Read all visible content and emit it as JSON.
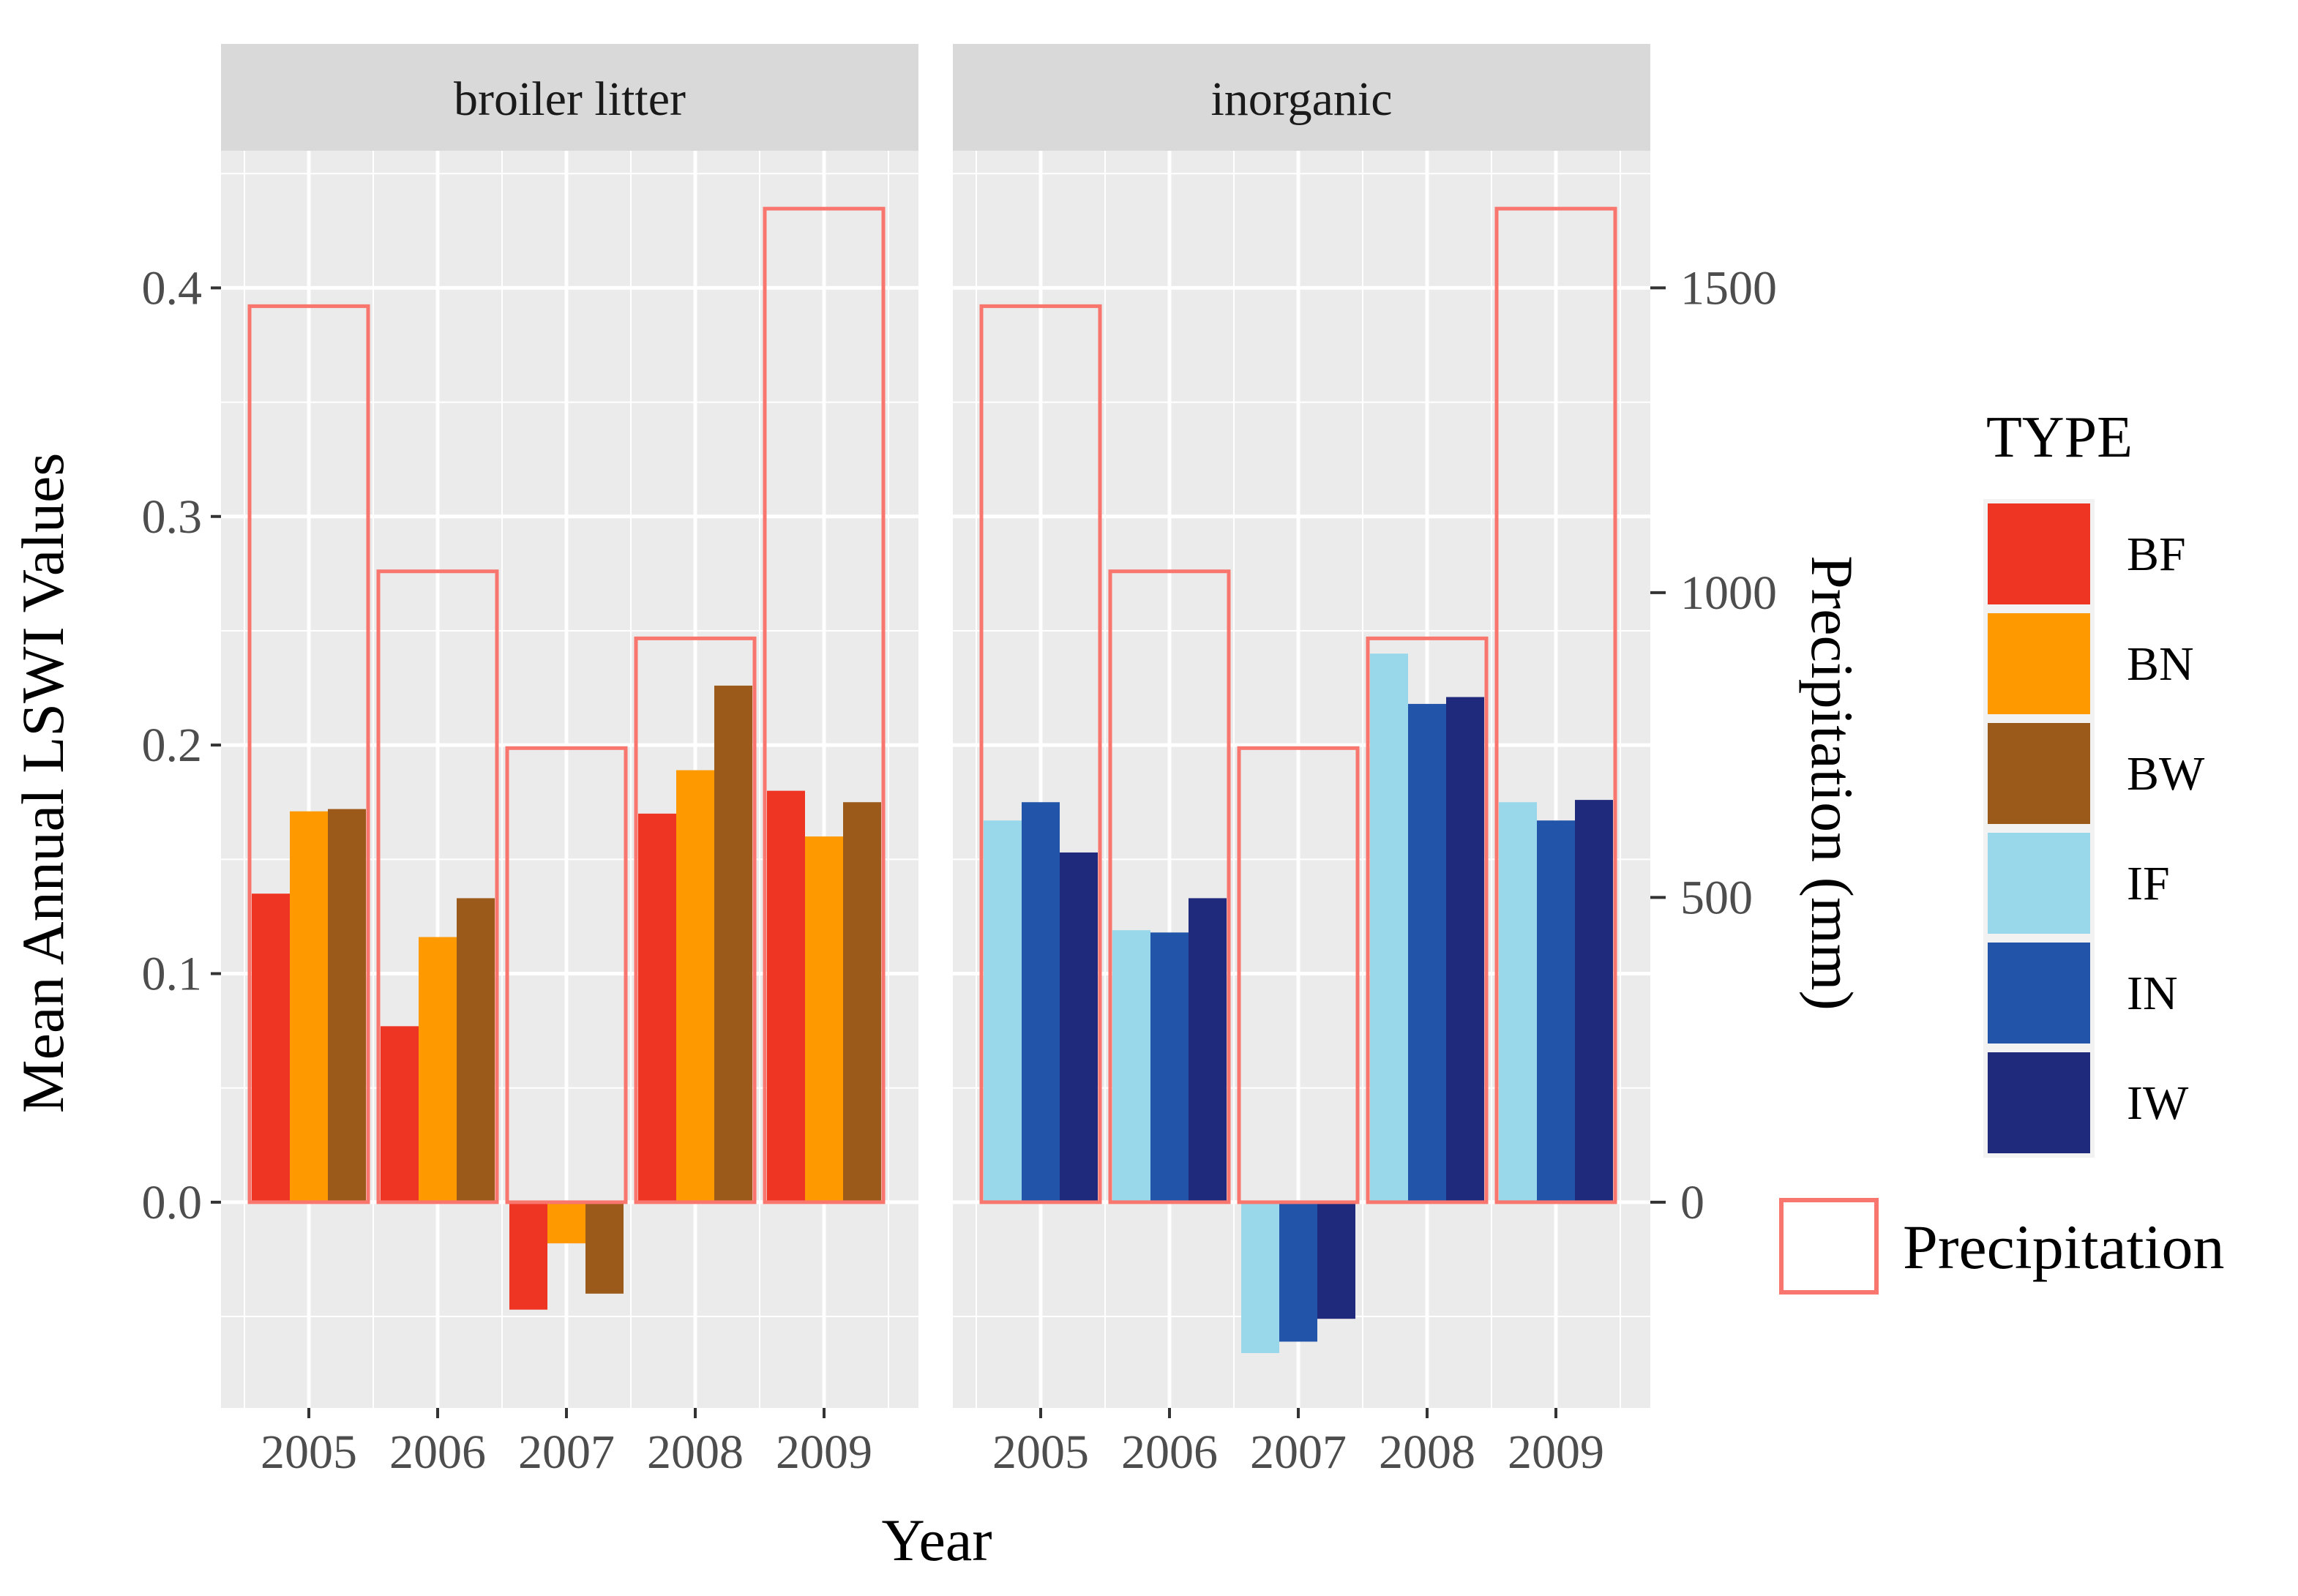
{
  "chart_data": {
    "type": "bar",
    "ylabel": "Mean Annual LSWI Values",
    "y2label": "Precipitation (mm)",
    "xlabel": "Year",
    "ylim": [
      -0.09,
      0.46
    ],
    "y_ticks": [
      0.0,
      0.1,
      0.2,
      0.3,
      0.4
    ],
    "y_tick_labels": [
      "0.0",
      "0.1",
      "0.2",
      "0.3",
      "0.4"
    ],
    "y2_ticks": [
      0,
      500,
      1000,
      1500
    ],
    "y2_tick_labels": [
      "0",
      "500",
      "1000",
      "1500"
    ],
    "y2_scale": 3750,
    "grid": true,
    "categories": [
      "2005",
      "2006",
      "2007",
      "2008",
      "2009"
    ],
    "precipitation": [
      1470,
      1035,
      745,
      925,
      1630
    ],
    "legend": {
      "title": "TYPE",
      "position": "right",
      "items": [
        {
          "label": "BF",
          "color": "#EE3524"
        },
        {
          "label": "BN",
          "color": "#FF9900"
        },
        {
          "label": "BW",
          "color": "#9B5A1A"
        },
        {
          "label": "IF",
          "color": "#99D8EA"
        },
        {
          "label": "IN",
          "color": "#2255A9"
        },
        {
          "label": "IW",
          "color": "#1F2A7C"
        }
      ],
      "precip_label": "Precipitation",
      "precip_color": "#F8766D"
    },
    "panels": [
      {
        "title": "broiler litter",
        "series": [
          {
            "name": "BF",
            "color": "#EE3524",
            "values": [
              0.135,
              0.077,
              -0.047,
              0.17,
              0.18
            ]
          },
          {
            "name": "BN",
            "color": "#FF9900",
            "values": [
              0.171,
              0.116,
              -0.018,
              0.189,
              0.16
            ]
          },
          {
            "name": "BW",
            "color": "#9B5A1A",
            "values": [
              0.172,
              0.133,
              -0.04,
              0.226,
              0.175
            ]
          }
        ]
      },
      {
        "title": "inorganic",
        "series": [
          {
            "name": "IF",
            "color": "#99D8EA",
            "values": [
              0.167,
              0.119,
              -0.066,
              0.24,
              0.175
            ]
          },
          {
            "name": "IN",
            "color": "#2255A9",
            "values": [
              0.175,
              0.118,
              -0.061,
              0.218,
              0.167
            ]
          },
          {
            "name": "IW",
            "color": "#1F2A7C",
            "values": [
              0.153,
              0.133,
              -0.051,
              0.221,
              0.176
            ]
          }
        ]
      }
    ]
  }
}
